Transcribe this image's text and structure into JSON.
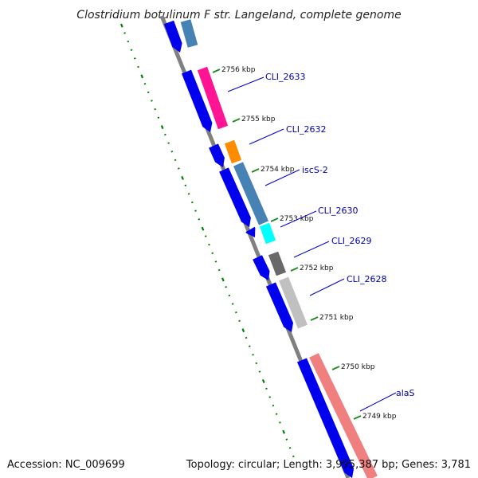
{
  "title": "Clostridium botulinum F str. Langeland, complete genome",
  "footer": {
    "accession": "Accession: NC_009699",
    "topology": "Topology: circular; Length: 3,995,387 bp; Genes: 3,781"
  },
  "scale_ticks": [
    {
      "label": "2756 kbp"
    },
    {
      "label": "2755 kbp"
    },
    {
      "label": "2754 kbp"
    },
    {
      "label": "2753 kbp"
    },
    {
      "label": "2752 kbp"
    },
    {
      "label": "2751 kbp"
    },
    {
      "label": "2750 kbp"
    },
    {
      "label": "2749 kbp"
    }
  ],
  "gene_labels": [
    {
      "name": "CLI_2633"
    },
    {
      "name": "CLI_2632"
    },
    {
      "name": "iscS-2"
    },
    {
      "name": "CLI_2630"
    },
    {
      "name": "CLI_2629"
    },
    {
      "name": "CLI_2628"
    },
    {
      "name": "alaS"
    }
  ],
  "colors": {
    "backbone": "#808080",
    "scale_ticks": "#228B22",
    "gc_dots": "#008000",
    "cds_arrow": "#0000EE",
    "label_line": "#0000CC",
    "label_text": "#0000AA",
    "gene_colors": [
      "#4682B4",
      "#FF1493",
      "#FF8C00",
      "#4682B4",
      "#00FFFF",
      "#696969",
      "#C0C0C0",
      "#F08080"
    ]
  }
}
